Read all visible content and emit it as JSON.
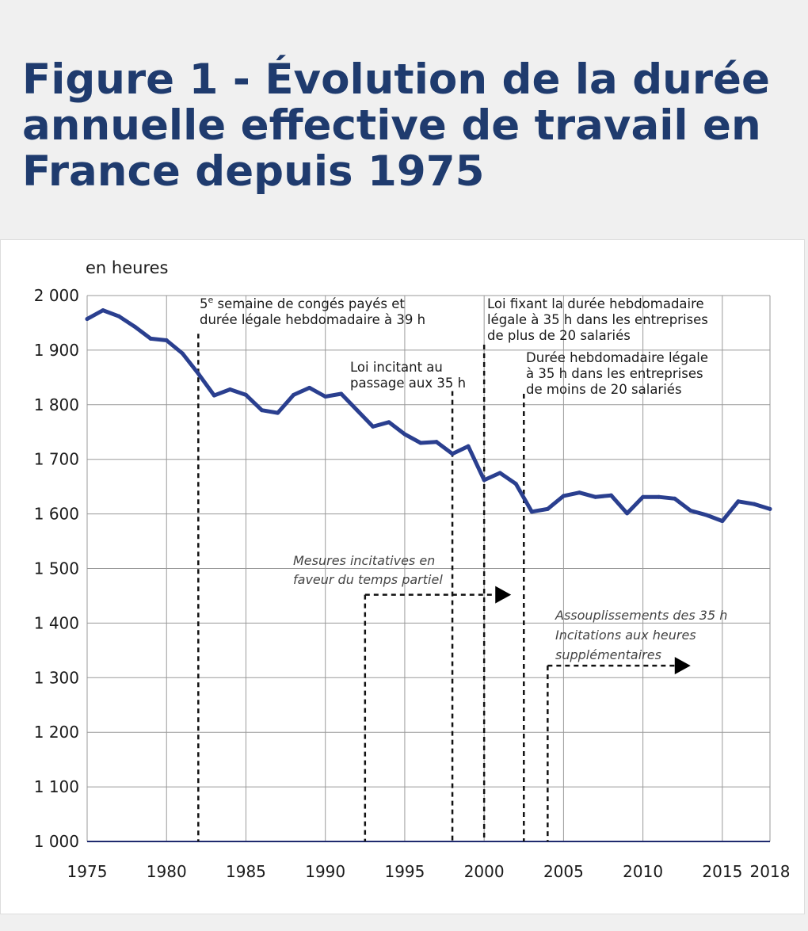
{
  "header": {
    "title": "Figure 1 - Évolution de la durée annuelle effective de travail en France depuis 1975"
  },
  "chart_data": {
    "type": "line",
    "title": "Figure 1 - Évolution de la durée annuelle effective de travail en France depuis 1975",
    "ylabel": "en heures",
    "xlabel": "",
    "xlim": [
      1975,
      2018
    ],
    "ylim": [
      1000,
      2000
    ],
    "grid": true,
    "x_ticks": [
      1975,
      1980,
      1985,
      1990,
      1995,
      2000,
      2005,
      2010,
      2015,
      2018
    ],
    "y_ticks": [
      1000,
      1100,
      1200,
      1300,
      1400,
      1500,
      1600,
      1700,
      1800,
      1900,
      2000
    ],
    "y_tick_labels": [
      "1 000",
      "1 100",
      "1 200",
      "1 300",
      "1 400",
      "1 500",
      "1 600",
      "1 700",
      "1 800",
      "1 900",
      "2 000"
    ],
    "line_color": "#2a3f8f",
    "series": [
      {
        "x": [
          1975,
          1976,
          1977,
          1978,
          1979,
          1980,
          1981,
          1982,
          1983,
          1984,
          1985,
          1986,
          1987,
          1988,
          1989,
          1990,
          1991,
          1992,
          1993,
          1994,
          1995,
          1996,
          1997,
          1998,
          1999,
          2000,
          2001,
          2002,
          2003,
          2004,
          2005,
          2006,
          2007,
          2008,
          2009,
          2010,
          2011,
          2012,
          2013,
          2014,
          2015,
          2016,
          2017,
          2018
        ],
        "values": [
          1957,
          1973,
          1962,
          1943,
          1921,
          1918,
          1894,
          1857,
          1817,
          1828,
          1818,
          1790,
          1785,
          1818,
          1831,
          1815,
          1820,
          1790,
          1760,
          1768,
          1746,
          1730,
          1732,
          1710,
          1724,
          1662,
          1675,
          1655,
          1604,
          1609,
          1633,
          1639,
          1631,
          1634,
          1601,
          1631,
          1631,
          1628,
          1606,
          1598,
          1587,
          1623,
          1618,
          1609
        ]
      }
    ],
    "events": [
      {
        "x": 1982,
        "y_top": 1930,
        "label_lines": [
          "5e semaine de congés payés et",
          "durée légale hebdomadaire à 39 h"
        ],
        "sup_prefix": "5",
        "sup": "e"
      },
      {
        "x": 1998,
        "y_top": 1825,
        "label_lines": [
          "Loi incitant au",
          "passage aux 35 h"
        ]
      },
      {
        "x": 2000,
        "y_top": 1910,
        "label_lines": [
          "Loi fixant la durée hebdomadaire",
          "légale à 35 h dans les entreprises",
          "de plus de 20 salariés"
        ]
      },
      {
        "x": 2002.5,
        "y_top": 1820,
        "label_lines": [
          "Durée hebdomadaire légale",
          "à 35 h dans les entreprises",
          "de moins de 20 salariés"
        ]
      }
    ],
    "measures": [
      {
        "x_start": 1992.5,
        "x_end": 2001.7,
        "y": 1452,
        "label_lines": [
          "Mesures incitatives en",
          "faveur du temps partiel"
        ]
      },
      {
        "x_start": 2004,
        "x_end": 2013,
        "y": 1322,
        "label_lines": [
          "Assouplissements des 35 h",
          "Incitations aux heures",
          "supplémentaires"
        ]
      }
    ]
  }
}
